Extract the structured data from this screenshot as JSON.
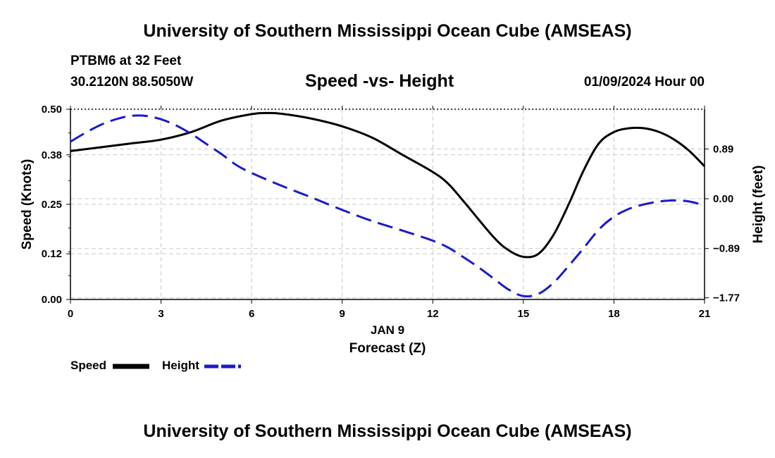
{
  "header": {
    "title": "University of Southern Mississippi Ocean Cube (AMSEAS)",
    "station": "PTBM6 at 32 Feet",
    "location": "30.2120N  88.5050W",
    "subtitle": "Speed -vs- Height",
    "datetime": "01/09/2024 Hour 00"
  },
  "footer": {
    "title": "University of Southern Mississippi Ocean Cube (AMSEAS)"
  },
  "legend": {
    "items": [
      {
        "label": "Speed",
        "color": "#000000",
        "style": "solid"
      },
      {
        "label": "Height",
        "color": "#1a1acc",
        "style": "dashed"
      }
    ]
  },
  "chart_data": {
    "type": "line",
    "title": "Speed -vs- Height",
    "xlabel": "Forecast (Z)",
    "xsublabel": "JAN 9",
    "ylabel": "Speed (Knots)",
    "y2label": "Height (feet)",
    "xlim": [
      0,
      21
    ],
    "xticks": [
      0,
      3,
      6,
      9,
      12,
      15,
      18,
      21
    ],
    "ylim": [
      0,
      0.5
    ],
    "yticks": [
      0.0,
      0.12,
      0.25,
      0.38,
      0.5
    ],
    "ytick_labels": [
      "0.00",
      "0.12",
      "0.25",
      "0.38",
      "0.50"
    ],
    "y2lim": [
      -1.8,
      1.6
    ],
    "y2ticks": [
      -1.77,
      -0.89,
      0.0,
      0.89
    ],
    "y2tick_labels": [
      "−1.77",
      "−0.89",
      "0.00",
      "0.89"
    ],
    "grid": true,
    "series": [
      {
        "name": "Speed",
        "axis": "left",
        "color": "#000000",
        "dash": "none",
        "x": [
          0,
          1,
          2,
          3,
          4,
          5,
          6,
          6.5,
          7,
          8,
          9,
          10,
          11,
          12,
          12.5,
          13,
          14,
          14.5,
          15,
          15.5,
          16,
          16.5,
          17,
          17.5,
          18,
          18.5,
          19,
          19.5,
          20,
          20.5,
          21
        ],
        "values": [
          0.39,
          0.4,
          0.41,
          0.42,
          0.44,
          0.47,
          0.487,
          0.49,
          0.488,
          0.475,
          0.455,
          0.425,
          0.38,
          0.335,
          0.305,
          0.26,
          0.165,
          0.13,
          0.112,
          0.12,
          0.17,
          0.25,
          0.34,
          0.41,
          0.44,
          0.45,
          0.45,
          0.44,
          0.42,
          0.39,
          0.35
        ]
      },
      {
        "name": "Height",
        "axis": "right",
        "color": "#1a1acc",
        "dash": "22,10",
        "x": [
          0,
          0.5,
          1,
          1.5,
          2,
          2.5,
          3,
          3.5,
          4,
          4.5,
          5,
          5.5,
          6,
          7,
          8,
          9,
          10,
          11,
          12,
          12.5,
          13,
          13.5,
          14,
          14.5,
          15,
          15.5,
          16,
          16.5,
          17,
          17.5,
          18,
          18.5,
          19,
          19.5,
          20,
          20.5,
          21
        ],
        "values": [
          1.02,
          1.18,
          1.32,
          1.42,
          1.48,
          1.48,
          1.42,
          1.31,
          1.16,
          0.98,
          0.8,
          0.6,
          0.46,
          0.23,
          0.02,
          -0.2,
          -0.4,
          -0.57,
          -0.75,
          -0.87,
          -1.04,
          -1.22,
          -1.42,
          -1.62,
          -1.74,
          -1.7,
          -1.5,
          -1.2,
          -0.88,
          -0.55,
          -0.32,
          -0.18,
          -0.1,
          -0.05,
          -0.03,
          -0.05,
          -0.12
        ]
      }
    ]
  }
}
